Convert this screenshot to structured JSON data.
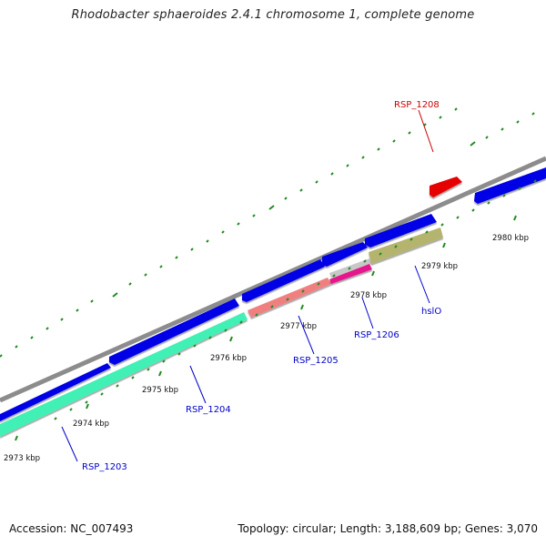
{
  "title": "Rhodobacter sphaeroides 2.4.1 chromosome 1, complete genome",
  "footer": {
    "accession_text": "Accession: NC_007493",
    "summary_text": "Topology: circular; Length: 3,188,609 bp; Genes: 3,070"
  },
  "ticks": [
    "2973 kbp",
    "2974 kbp",
    "2975 kbp",
    "2976 kbp",
    "2977 kbp",
    "2978 kbp",
    "2979 kbp",
    "2980 kbp"
  ],
  "gene_labels": {
    "rsp1208": "RSP_1208",
    "rsp1206": "RSP_1206",
    "rsp1205": "RSP_1205",
    "rsp1204": "RSP_1204",
    "rsp1203": "RSP_1203",
    "hslo": "hslO"
  },
  "colors": {
    "backbone": "#8c8c8c",
    "cds": "#0000e6",
    "rrna_like": "#40f0b4",
    "highlight": "#f08080",
    "magenta": "#e6198c",
    "olive": "#b4b46e",
    "red_gene": "#e60000",
    "tick": "#228b22",
    "label_blue": "#0000cc",
    "label_red": "#cc0000"
  }
}
